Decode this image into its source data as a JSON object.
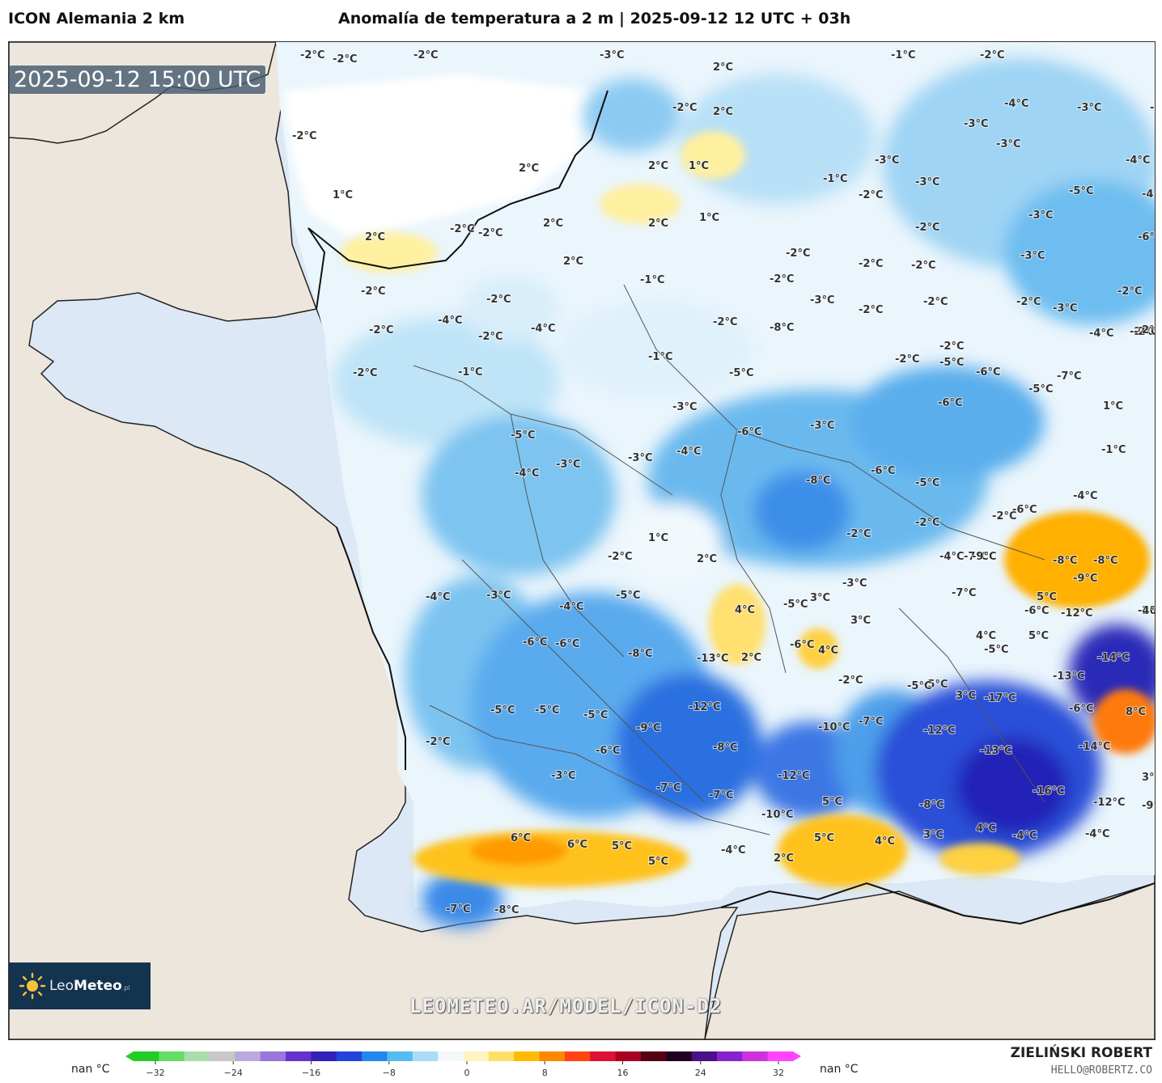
{
  "header": {
    "model": "ICON Alemania 2 km",
    "title": "Anomalía de temperatura a 2 m | 2025-09-12 12 UTC + 03h"
  },
  "map": {
    "timestamp": "2025-09-12 15:00 UTC",
    "watermark": "LEOMETEO.AR/MODEL/ICON-D2",
    "logo": {
      "name": "LeoMeteo",
      "prefix": "Leo",
      "bold": "Meteo",
      "suffix": ".pl"
    },
    "labels": [
      "-2°C",
      "-2°C",
      "-2°C",
      "-3°C",
      "-1°C",
      "-2°C",
      "2°C",
      "-2°C",
      "-4°C",
      "-3°C",
      "-3°C",
      "-2°C",
      "2°C",
      "-3°C",
      "-3°C",
      "-4°C",
      "2°C",
      "2°C",
      "1°C",
      "-1°C",
      "-2°C",
      "-3°C",
      "-5°C",
      "-4°C",
      "1°C",
      "2°C",
      "2°C",
      "2°C",
      "1°C",
      "-3°C",
      "-3°C",
      "-6°C",
      "2°C",
      "-2°C",
      "-2°C",
      "-2°C",
      "-2°C",
      "-2°C",
      "-2°C",
      "-2°C",
      "-3°C",
      "-2°C",
      "-2°C",
      "-2°C",
      "-1°C",
      "-2°C",
      "-2°C",
      "-2°C",
      "-4°C",
      "-2°C",
      "-2°C",
      "-3°C",
      "-2°C",
      "-3°C",
      "-4°C",
      "-2°C",
      "-2°C",
      "-4°C",
      "-2°C",
      "-8°C",
      "2°C",
      "-2°C",
      "-1°C",
      "-1°C",
      "-5°C",
      "-2°C",
      "-5°C",
      "-6°C",
      "-7°C",
      "-5°C",
      "-3°C",
      "-4°C",
      "-6°C",
      "1°C",
      "-5°C",
      "-4°C",
      "-3°C",
      "-3°C",
      "-4°C",
      "-6°C",
      "-3°C",
      "-8°C",
      "-6°C",
      "-5°C",
      "-1°C",
      "-2°C",
      "-2°C",
      "-2°C",
      "1°C",
      "-2°C",
      "2°C",
      "-6°C",
      "-4°C",
      "-7°C",
      "-4°C",
      "-9°C",
      "-8°C",
      "-8°C",
      "-9°C",
      "-4°C",
      "-3°C",
      "-4°C",
      "-6°C",
      "-5°C",
      "4°C",
      "-5°C",
      "3°C",
      "-3°C",
      "3°C",
      "-7°C",
      "5°C",
      "-6°C",
      "-12°C",
      "-26°C",
      "-6°C",
      "-8°C",
      "-13°C",
      "2°C",
      "-6°C",
      "4°C",
      "-2°C",
      "4°C",
      "-5°C",
      "5°C",
      "-14°C",
      "-4°C",
      "-5°C",
      "-13°C",
      "-5°C",
      "-5°C",
      "-5°C",
      "-12°C",
      "-9°C",
      "-10°C",
      "-7°C",
      "-5°C",
      "3°C",
      "-17°C",
      "-6°C",
      "8°C",
      "-2°C",
      "-6°C",
      "-8°C",
      "-12°C",
      "-13°C",
      "-14°C",
      "-3°C",
      "-7°C",
      "-7°C",
      "-12°C",
      "-16°C",
      "3°C",
      "5°C",
      "-10°C",
      "-8°C",
      "-12°C",
      "-9°C",
      "6°C",
      "6°C",
      "5°C",
      "5°C",
      "-4°C",
      "5°C",
      "4°C",
      "3°C",
      "4°C",
      "-4°C",
      "-4°C",
      "2°C",
      "-7°C",
      "-8°C"
    ]
  },
  "legend": {
    "nan_left": "nan °C",
    "nan_right": "nan °C",
    "ticks": [
      "−32",
      "−24",
      "−16",
      "−8",
      "0",
      "8",
      "16",
      "24",
      "32"
    ],
    "colors": [
      "#22cc22",
      "#66dd66",
      "#aaddaa",
      "#c8c8c8",
      "#bba8dd",
      "#9977dd",
      "#6633cc",
      "#3322bb",
      "#2244dd",
      "#2288ee",
      "#55bbf0",
      "#aadcf6",
      "#f2f8fc",
      "#fff5c0",
      "#ffe066",
      "#ffbb00",
      "#ff8800",
      "#ff4411",
      "#dd1133",
      "#aa0022",
      "#550011",
      "#220022",
      "#4a1188",
      "#8822cc",
      "#cc33dd",
      "#ff44ff"
    ]
  },
  "credits": {
    "author": "ZIELIŃSKI ROBERT",
    "email": "HELLO@ROBERTZ.CO"
  }
}
